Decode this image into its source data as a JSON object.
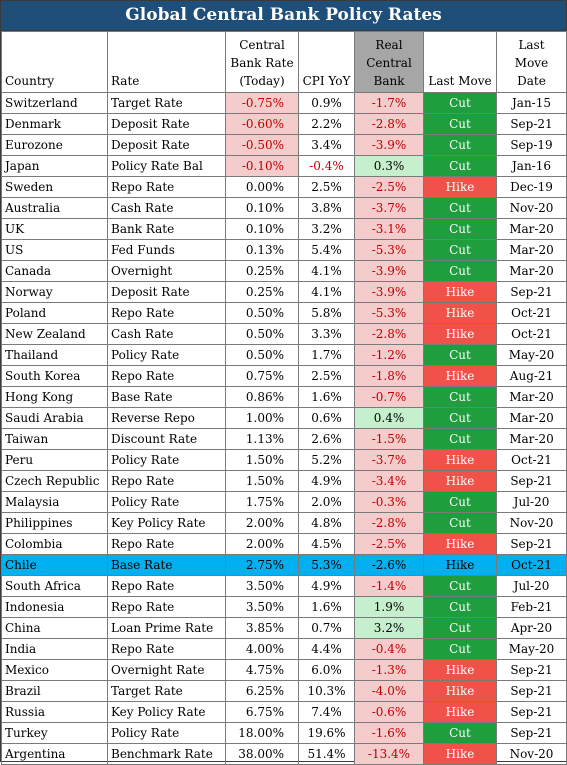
{
  "title": "Global Central Bank Policy Rates",
  "headers": {
    "country": "Country",
    "rate": "Rate",
    "cb_rate": [
      "Central",
      "Bank Rate",
      "(Today)"
    ],
    "cpi": "CPI YoY",
    "real": [
      "Real",
      "Central",
      "Bank"
    ],
    "last_move": "Last Move",
    "last_move_date": [
      "Last",
      "Move",
      "Date"
    ]
  },
  "colors": {
    "title_bg": "#1f4e79",
    "cut": "#1e9e3d",
    "hike": "#f0524a",
    "negative_bg": "#f4cccc",
    "positive_bg": "#c6efce",
    "highlight": "#00b0f0",
    "negative_text": "#c00000"
  },
  "highlight_row": "Chile",
  "rows": [
    {
      "country": "Switzerland",
      "rate": "Target Rate",
      "cb": "-0.75%",
      "cpi": "0.9%",
      "real": "-1.7%",
      "move": "Cut",
      "date": "Jan-15"
    },
    {
      "country": "Denmark",
      "rate": "Deposit Rate",
      "cb": "-0.60%",
      "cpi": "2.2%",
      "real": "-2.8%",
      "move": "Cut",
      "date": "Sep-21"
    },
    {
      "country": "Eurozone",
      "rate": "Deposit Rate",
      "cb": "-0.50%",
      "cpi": "3.4%",
      "real": "-3.9%",
      "move": "Cut",
      "date": "Sep-19"
    },
    {
      "country": "Japan",
      "rate": "Policy Rate Bal",
      "cb": "-0.10%",
      "cpi": "-0.4%",
      "real": "0.3%",
      "move": "Cut",
      "date": "Jan-16"
    },
    {
      "country": "Sweden",
      "rate": "Repo Rate",
      "cb": "0.00%",
      "cpi": "2.5%",
      "real": "-2.5%",
      "move": "Hike",
      "date": "Dec-19"
    },
    {
      "country": "Australia",
      "rate": "Cash Rate",
      "cb": "0.10%",
      "cpi": "3.8%",
      "real": "-3.7%",
      "move": "Cut",
      "date": "Nov-20"
    },
    {
      "country": "UK",
      "rate": "Bank Rate",
      "cb": "0.10%",
      "cpi": "3.2%",
      "real": "-3.1%",
      "move": "Cut",
      "date": "Mar-20"
    },
    {
      "country": "US",
      "rate": "Fed Funds",
      "cb": "0.13%",
      "cpi": "5.4%",
      "real": "-5.3%",
      "move": "Cut",
      "date": "Mar-20"
    },
    {
      "country": "Canada",
      "rate": "Overnight",
      "cb": "0.25%",
      "cpi": "4.1%",
      "real": "-3.9%",
      "move": "Cut",
      "date": "Mar-20"
    },
    {
      "country": "Norway",
      "rate": "Deposit Rate",
      "cb": "0.25%",
      "cpi": "4.1%",
      "real": "-3.9%",
      "move": "Hike",
      "date": "Sep-21"
    },
    {
      "country": "Poland",
      "rate": "Repo Rate",
      "cb": "0.50%",
      "cpi": "5.8%",
      "real": "-5.3%",
      "move": "Hike",
      "date": "Oct-21"
    },
    {
      "country": "New Zealand",
      "rate": "Cash Rate",
      "cb": "0.50%",
      "cpi": "3.3%",
      "real": "-2.8%",
      "move": "Hike",
      "date": "Oct-21"
    },
    {
      "country": "Thailand",
      "rate": "Policy Rate",
      "cb": "0.50%",
      "cpi": "1.7%",
      "real": "-1.2%",
      "move": "Cut",
      "date": "May-20"
    },
    {
      "country": "South Korea",
      "rate": "Repo Rate",
      "cb": "0.75%",
      "cpi": "2.5%",
      "real": "-1.8%",
      "move": "Hike",
      "date": "Aug-21"
    },
    {
      "country": "Hong Kong",
      "rate": "Base Rate",
      "cb": "0.86%",
      "cpi": "1.6%",
      "real": "-0.7%",
      "move": "Cut",
      "date": "Mar-20"
    },
    {
      "country": "Saudi Arabia",
      "rate": "Reverse Repo",
      "cb": "1.00%",
      "cpi": "0.6%",
      "real": "0.4%",
      "move": "Cut",
      "date": "Mar-20"
    },
    {
      "country": "Taiwan",
      "rate": "Discount Rate",
      "cb": "1.13%",
      "cpi": "2.6%",
      "real": "-1.5%",
      "move": "Cut",
      "date": "Mar-20"
    },
    {
      "country": "Peru",
      "rate": "Policy Rate",
      "cb": "1.50%",
      "cpi": "5.2%",
      "real": "-3.7%",
      "move": "Hike",
      "date": "Oct-21"
    },
    {
      "country": "Czech Republic",
      "rate": "Repo Rate",
      "cb": "1.50%",
      "cpi": "4.9%",
      "real": "-3.4%",
      "move": "Hike",
      "date": "Sep-21"
    },
    {
      "country": "Malaysia",
      "rate": "Policy Rate",
      "cb": "1.75%",
      "cpi": "2.0%",
      "real": "-0.3%",
      "move": "Cut",
      "date": "Jul-20"
    },
    {
      "country": "Philippines",
      "rate": "Key Policy Rate",
      "cb": "2.00%",
      "cpi": "4.8%",
      "real": "-2.8%",
      "move": "Cut",
      "date": "Nov-20"
    },
    {
      "country": "Colombia",
      "rate": "Repo Rate",
      "cb": "2.00%",
      "cpi": "4.5%",
      "real": "-2.5%",
      "move": "Hike",
      "date": "Sep-21"
    },
    {
      "country": "Chile",
      "rate": "Base Rate",
      "cb": "2.75%",
      "cpi": "5.3%",
      "real": "-2.6%",
      "move": "Hike",
      "date": "Oct-21"
    },
    {
      "country": "South Africa",
      "rate": "Repo Rate",
      "cb": "3.50%",
      "cpi": "4.9%",
      "real": "-1.4%",
      "move": "Cut",
      "date": "Jul-20"
    },
    {
      "country": "Indonesia",
      "rate": "Repo Rate",
      "cb": "3.50%",
      "cpi": "1.6%",
      "real": "1.9%",
      "move": "Cut",
      "date": "Feb-21"
    },
    {
      "country": "China",
      "rate": "Loan Prime Rate",
      "cb": "3.85%",
      "cpi": "0.7%",
      "real": "3.2%",
      "move": "Cut",
      "date": "Apr-20"
    },
    {
      "country": "India",
      "rate": "Repo Rate",
      "cb": "4.00%",
      "cpi": "4.4%",
      "real": "-0.4%",
      "move": "Cut",
      "date": "May-20"
    },
    {
      "country": "Mexico",
      "rate": "Overnight Rate",
      "cb": "4.75%",
      "cpi": "6.0%",
      "real": "-1.3%",
      "move": "Hike",
      "date": "Sep-21"
    },
    {
      "country": "Brazil",
      "rate": "Target Rate",
      "cb": "6.25%",
      "cpi": "10.3%",
      "real": "-4.0%",
      "move": "Hike",
      "date": "Sep-21"
    },
    {
      "country": "Russia",
      "rate": "Key Policy Rate",
      "cb": "6.75%",
      "cpi": "7.4%",
      "real": "-0.6%",
      "move": "Hike",
      "date": "Sep-21"
    },
    {
      "country": "Turkey",
      "rate": "Policy Rate",
      "cb": "18.00%",
      "cpi": "19.6%",
      "real": "-1.6%",
      "move": "Cut",
      "date": "Sep-21"
    },
    {
      "country": "Argentina",
      "rate": "Benchmark Rate",
      "cb": "38.00%",
      "cpi": "51.4%",
      "real": "-13.4%",
      "move": "Hike",
      "date": "Nov-20"
    }
  ]
}
